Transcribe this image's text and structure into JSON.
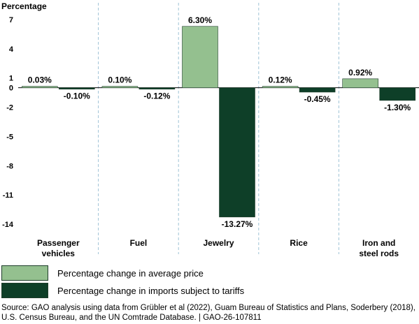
{
  "chart_data": {
    "type": "bar",
    "ylabel": "Percentage",
    "ylim": [
      -14,
      7
    ],
    "yticks": [
      7,
      4,
      1,
      0,
      -2,
      -5,
      -8,
      -11,
      -14
    ],
    "grid": false,
    "categories": [
      "Passenger vehicles",
      "Fuel",
      "Jewelry",
      "Rice",
      "Iron and steel rods"
    ],
    "category_lines": [
      [
        "Passenger",
        "vehicles"
      ],
      [
        "Fuel"
      ],
      [
        "Jewelry"
      ],
      [
        "Rice"
      ],
      [
        "Iron and",
        "steel rods"
      ]
    ],
    "series": [
      {
        "name": "Percentage change in average price",
        "color": "#94c08f",
        "values": [
          0.03,
          0.1,
          6.3,
          0.12,
          0.92
        ],
        "labels": [
          "0.03%",
          "0.10%",
          "6.30%",
          "0.12%",
          "0.92%"
        ]
      },
      {
        "name": "Percentage change in imports subject to tariffs",
        "color": "#0e3f28",
        "values": [
          -0.1,
          -0.12,
          -13.27,
          -0.45,
          -1.3
        ],
        "labels": [
          "-0.10%",
          "-0.12%",
          "-13.27%",
          "-0.45%",
          "-1.30%"
        ]
      }
    ],
    "legend_position": "bottom-left"
  },
  "legend": {
    "items": [
      {
        "label": "Percentage change in average price",
        "color": "#94c08f"
      },
      {
        "label": "Percentage change in imports subject to tariffs",
        "color": "#0e3f28"
      }
    ]
  },
  "source": {
    "line1": "Source: GAO analysis using data from Grübler et al (2022), Guam Bureau of Statistics and Plans, Soderbery (2018),",
    "line2": "U.S. Census Bureau, and the UN Comtrade Database.  |  GAO-26-107811"
  }
}
